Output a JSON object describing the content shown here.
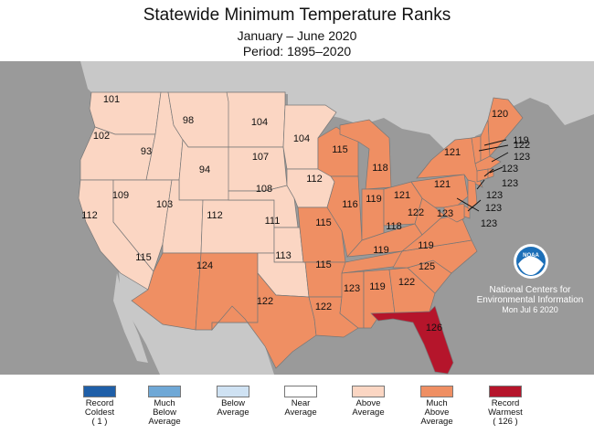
{
  "header": {
    "title": "Statewide Minimum Temperature Ranks",
    "subtitle": "January – June 2020",
    "period": "Period: 1895–2020"
  },
  "credit": {
    "org": "National Centers for Environmental Information",
    "date": "Mon Jul  6 2020",
    "logo": "NOAA"
  },
  "legend": [
    {
      "label": "Record\nColdest\n( 1 )",
      "color": "#1f5fa8"
    },
    {
      "label": "Much\nBelow\nAverage",
      "color": "#6fa8d6"
    },
    {
      "label": "Below\nAverage",
      "color": "#cfe2f3"
    },
    {
      "label": "Near\nAverage",
      "color": "#ffffff"
    },
    {
      "label": "Above\nAverage",
      "color": "#fbd6c3"
    },
    {
      "label": "Much\nAbove\nAverage",
      "color": "#ef8f63"
    },
    {
      "label": "Record\nWarmest\n( 126 )",
      "color": "#b5152b"
    }
  ],
  "colors": {
    "above": "#fbd6c3",
    "much_above": "#ef8f63",
    "record": "#b5152b",
    "ocean": "#9a9a9a",
    "land_outside": "#c8c8c8"
  },
  "states": [
    {
      "code": "WA",
      "rank": "101",
      "category": "above"
    },
    {
      "code": "OR",
      "rank": "102",
      "category": "above"
    },
    {
      "code": "CA",
      "rank": "112",
      "category": "above"
    },
    {
      "code": "ID",
      "rank": "93",
      "category": "above"
    },
    {
      "code": "NV",
      "rank": "109",
      "category": "above"
    },
    {
      "code": "MT",
      "rank": "98",
      "category": "above"
    },
    {
      "code": "WY",
      "rank": "94",
      "category": "above"
    },
    {
      "code": "UT",
      "rank": "103",
      "category": "above"
    },
    {
      "code": "CO",
      "rank": "112",
      "category": "above"
    },
    {
      "code": "AZ",
      "rank": "115",
      "category": "much_above"
    },
    {
      "code": "NM",
      "rank": "124",
      "category": "much_above"
    },
    {
      "code": "ND",
      "rank": "104",
      "category": "above"
    },
    {
      "code": "SD",
      "rank": "107",
      "category": "above"
    },
    {
      "code": "NE",
      "rank": "108",
      "category": "above"
    },
    {
      "code": "KS",
      "rank": "111",
      "category": "above"
    },
    {
      "code": "OK",
      "rank": "113",
      "category": "above"
    },
    {
      "code": "TX",
      "rank": "122",
      "category": "much_above"
    },
    {
      "code": "MN",
      "rank": "104",
      "category": "above"
    },
    {
      "code": "IA",
      "rank": "112",
      "category": "above"
    },
    {
      "code": "MO",
      "rank": "115",
      "category": "much_above"
    },
    {
      "code": "AR",
      "rank": "115",
      "category": "much_above"
    },
    {
      "code": "LA",
      "rank": "122",
      "category": "much_above"
    },
    {
      "code": "WI",
      "rank": "115",
      "category": "much_above"
    },
    {
      "code": "IL",
      "rank": "116",
      "category": "much_above"
    },
    {
      "code": "MI",
      "rank": "118",
      "category": "much_above"
    },
    {
      "code": "IN",
      "rank": "119",
      "category": "much_above"
    },
    {
      "code": "OH",
      "rank": "121",
      "category": "much_above"
    },
    {
      "code": "KY",
      "rank": "118",
      "category": "much_above"
    },
    {
      "code": "TN",
      "rank": "119",
      "category": "much_above"
    },
    {
      "code": "MS",
      "rank": "123",
      "category": "much_above"
    },
    {
      "code": "AL",
      "rank": "119",
      "category": "much_above"
    },
    {
      "code": "GA",
      "rank": "122",
      "category": "much_above"
    },
    {
      "code": "FL",
      "rank": "126",
      "category": "record"
    },
    {
      "code": "SC",
      "rank": "125",
      "category": "much_above"
    },
    {
      "code": "NC",
      "rank": "119",
      "category": "much_above"
    },
    {
      "code": "VA",
      "rank": "123",
      "category": "much_above"
    },
    {
      "code": "WV",
      "rank": "122",
      "category": "much_above"
    },
    {
      "code": "PA",
      "rank": "121",
      "category": "much_above"
    },
    {
      "code": "NY",
      "rank": "121",
      "category": "much_above"
    },
    {
      "code": "ME",
      "rank": "120",
      "category": "much_above"
    },
    {
      "code": "NH",
      "rank": "119",
      "category": "much_above"
    },
    {
      "code": "VT",
      "rank": "122",
      "category": "much_above"
    },
    {
      "code": "MA",
      "rank": "123",
      "category": "much_above"
    },
    {
      "code": "RI",
      "rank": "123",
      "category": "much_above"
    },
    {
      "code": "CT",
      "rank": "123",
      "category": "much_above"
    },
    {
      "code": "NJ",
      "rank": "123",
      "category": "much_above"
    },
    {
      "code": "DE",
      "rank": "123",
      "category": "much_above"
    },
    {
      "code": "MD",
      "rank": "123",
      "category": "much_above"
    }
  ]
}
